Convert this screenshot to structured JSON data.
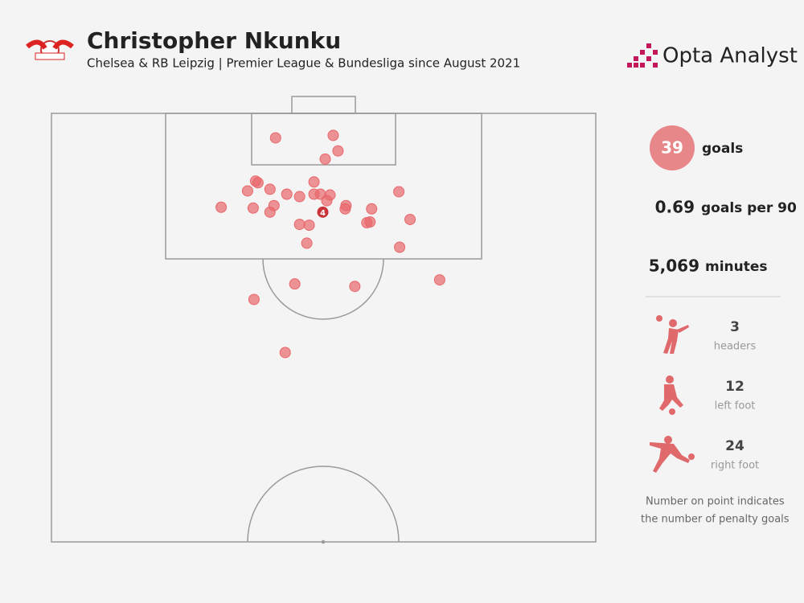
{
  "header": {
    "title": "Christopher Nkunku",
    "subtitle": "Chelsea & RB Leipzig | Premier League & Bundesliga since August 2021",
    "brand": "Opta Analyst"
  },
  "stats": {
    "goals": 39,
    "goals_label": "goals",
    "per90": 0.69,
    "per90_label": "goals per 90",
    "minutes": "5,069",
    "minutes_label": "minutes",
    "breakdown": [
      {
        "count": 3,
        "label": "headers"
      },
      {
        "count": 12,
        "label": "left foot"
      },
      {
        "count": 24,
        "label": "right foot"
      }
    ]
  },
  "note": [
    "Number on point indicates",
    "the number of penalty goals"
  ],
  "chart_data": {
    "type": "scatter",
    "color": "#e8676b",
    "xlim": [
      0,
      68
    ],
    "ylim": [
      0,
      52.5
    ],
    "x": [
      28.0,
      35.2,
      35.8,
      34.2,
      25.5,
      25.8,
      32.8,
      24.5,
      27.3,
      29.4,
      31.0,
      32.8,
      33.6,
      34.8,
      34.4,
      43.4,
      21.2,
      25.2,
      27.8,
      27.3,
      36.8,
      36.7,
      40.0,
      39.4,
      39.8,
      44.8,
      31.0,
      32.2,
      31.9,
      43.5,
      30.4,
      37.9,
      48.5,
      25.3,
      29.2
    ],
    "y": [
      3.0,
      2.7,
      4.6,
      5.6,
      8.3,
      8.5,
      8.4,
      9.5,
      9.3,
      9.9,
      10.2,
      9.9,
      9.9,
      10.0,
      10.7,
      9.6,
      11.5,
      11.6,
      11.3,
      12.1,
      11.3,
      11.7,
      11.7,
      13.4,
      13.3,
      13.0,
      13.6,
      13.7,
      15.9,
      16.4,
      20.9,
      21.2,
      20.4,
      22.8,
      29.3
    ],
    "penalty": {
      "x": 33.9,
      "y": 12.1,
      "count": 4,
      "color": "#c9343a"
    }
  }
}
